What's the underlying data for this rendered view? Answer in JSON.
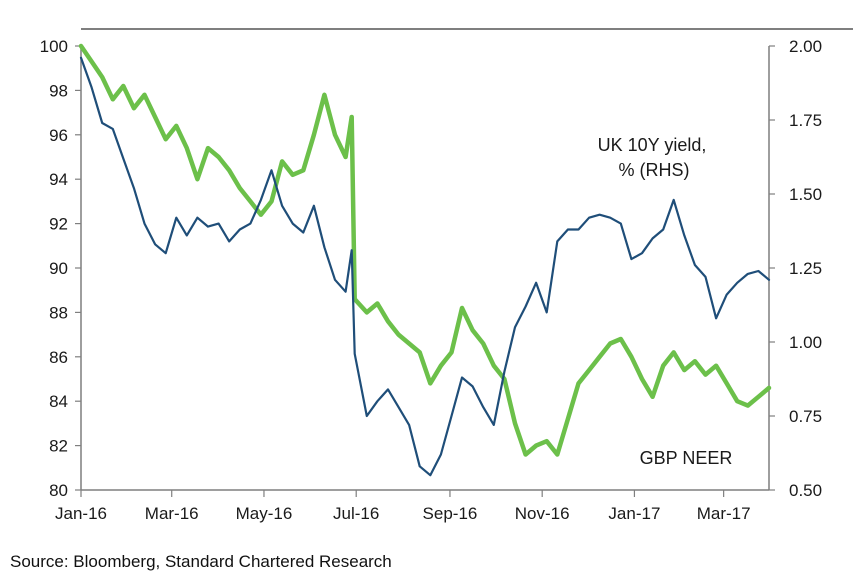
{
  "chart_data": {
    "type": "line",
    "title": "",
    "xlabel": "",
    "ylabel_left": "",
    "ylabel_right": "",
    "x_ticks": [
      "Jan-16",
      "Mar-16",
      "May-16",
      "Jul-16",
      "Sep-16",
      "Nov-16",
      "Jan-17",
      "Mar-17"
    ],
    "x_range": [
      "2016-01-01",
      "2017-03-31"
    ],
    "ylim_left": [
      80,
      100
    ],
    "yticks_left": [
      "80",
      "82",
      "84",
      "86",
      "88",
      "90",
      "92",
      "94",
      "96",
      "98",
      "100"
    ],
    "ylim_right": [
      0.5,
      2.0
    ],
    "yticks_right": [
      "0.50",
      "0.75",
      "1.00",
      "1.25",
      "1.50",
      "1.75",
      "2.00"
    ],
    "grid": false,
    "legend": "none",
    "series": [
      {
        "name": "GBP NEER",
        "axis": "left",
        "color": "#6cc04a",
        "points": [
          [
            "2016-01-01",
            100.0
          ],
          [
            "2016-01-08",
            99.3
          ],
          [
            "2016-01-15",
            98.6
          ],
          [
            "2016-01-22",
            97.6
          ],
          [
            "2016-01-29",
            98.2
          ],
          [
            "2016-02-05",
            97.2
          ],
          [
            "2016-02-12",
            97.8
          ],
          [
            "2016-02-19",
            96.8
          ],
          [
            "2016-02-26",
            95.8
          ],
          [
            "2016-03-04",
            96.4
          ],
          [
            "2016-03-11",
            95.4
          ],
          [
            "2016-03-18",
            94.0
          ],
          [
            "2016-03-25",
            95.4
          ],
          [
            "2016-04-01",
            95.0
          ],
          [
            "2016-04-08",
            94.4
          ],
          [
            "2016-04-15",
            93.6
          ],
          [
            "2016-04-22",
            93.0
          ],
          [
            "2016-04-29",
            92.4
          ],
          [
            "2016-05-06",
            93.0
          ],
          [
            "2016-05-13",
            94.8
          ],
          [
            "2016-05-20",
            94.2
          ],
          [
            "2016-05-27",
            94.4
          ],
          [
            "2016-06-03",
            96.0
          ],
          [
            "2016-06-10",
            97.8
          ],
          [
            "2016-06-17",
            96.0
          ],
          [
            "2016-06-24",
            95.0
          ],
          [
            "2016-06-28",
            96.8
          ],
          [
            "2016-06-30",
            88.6
          ],
          [
            "2016-07-08",
            88.0
          ],
          [
            "2016-07-15",
            88.4
          ],
          [
            "2016-07-22",
            87.6
          ],
          [
            "2016-07-29",
            87.0
          ],
          [
            "2016-08-05",
            86.6
          ],
          [
            "2016-08-12",
            86.2
          ],
          [
            "2016-08-19",
            84.8
          ],
          [
            "2016-08-26",
            85.6
          ],
          [
            "2016-09-02",
            86.2
          ],
          [
            "2016-09-09",
            88.2
          ],
          [
            "2016-09-16",
            87.2
          ],
          [
            "2016-09-23",
            86.6
          ],
          [
            "2016-09-30",
            85.6
          ],
          [
            "2016-10-07",
            85.0
          ],
          [
            "2016-10-14",
            83.0
          ],
          [
            "2016-10-21",
            81.6
          ],
          [
            "2016-10-28",
            82.0
          ],
          [
            "2016-11-04",
            82.2
          ],
          [
            "2016-11-11",
            81.6
          ],
          [
            "2016-11-18",
            83.2
          ],
          [
            "2016-11-25",
            84.8
          ],
          [
            "2016-12-02",
            85.4
          ],
          [
            "2016-12-09",
            86.0
          ],
          [
            "2016-12-16",
            86.6
          ],
          [
            "2016-12-23",
            86.8
          ],
          [
            "2016-12-30",
            86.0
          ],
          [
            "2017-01-06",
            85.0
          ],
          [
            "2017-01-13",
            84.2
          ],
          [
            "2017-01-20",
            85.6
          ],
          [
            "2017-01-27",
            86.2
          ],
          [
            "2017-02-03",
            85.4
          ],
          [
            "2017-02-10",
            85.8
          ],
          [
            "2017-02-17",
            85.2
          ],
          [
            "2017-02-24",
            85.6
          ],
          [
            "2017-03-03",
            84.8
          ],
          [
            "2017-03-10",
            84.0
          ],
          [
            "2017-03-17",
            83.8
          ],
          [
            "2017-03-24",
            84.2
          ],
          [
            "2017-03-31",
            84.6
          ]
        ]
      },
      {
        "name": "UK 10Y yield, % (RHS)",
        "axis": "right",
        "color": "#1f4e79",
        "points": [
          [
            "2016-01-01",
            1.96
          ],
          [
            "2016-01-08",
            1.86
          ],
          [
            "2016-01-15",
            1.74
          ],
          [
            "2016-01-22",
            1.72
          ],
          [
            "2016-01-29",
            1.62
          ],
          [
            "2016-02-05",
            1.52
          ],
          [
            "2016-02-12",
            1.4
          ],
          [
            "2016-02-19",
            1.33
          ],
          [
            "2016-02-26",
            1.3
          ],
          [
            "2016-03-04",
            1.42
          ],
          [
            "2016-03-11",
            1.36
          ],
          [
            "2016-03-18",
            1.42
          ],
          [
            "2016-03-25",
            1.39
          ],
          [
            "2016-04-01",
            1.4
          ],
          [
            "2016-04-08",
            1.34
          ],
          [
            "2016-04-15",
            1.38
          ],
          [
            "2016-04-22",
            1.4
          ],
          [
            "2016-04-29",
            1.48
          ],
          [
            "2016-05-06",
            1.58
          ],
          [
            "2016-05-13",
            1.46
          ],
          [
            "2016-05-20",
            1.4
          ],
          [
            "2016-05-27",
            1.37
          ],
          [
            "2016-06-03",
            1.46
          ],
          [
            "2016-06-10",
            1.32
          ],
          [
            "2016-06-17",
            1.21
          ],
          [
            "2016-06-24",
            1.17
          ],
          [
            "2016-06-28",
            1.31
          ],
          [
            "2016-06-30",
            0.96
          ],
          [
            "2016-07-08",
            0.75
          ],
          [
            "2016-07-15",
            0.8
          ],
          [
            "2016-07-22",
            0.84
          ],
          [
            "2016-07-29",
            0.78
          ],
          [
            "2016-08-05",
            0.72
          ],
          [
            "2016-08-12",
            0.58
          ],
          [
            "2016-08-19",
            0.55
          ],
          [
            "2016-08-26",
            0.62
          ],
          [
            "2016-09-02",
            0.75
          ],
          [
            "2016-09-09",
            0.88
          ],
          [
            "2016-09-16",
            0.85
          ],
          [
            "2016-09-23",
            0.78
          ],
          [
            "2016-09-30",
            0.72
          ],
          [
            "2016-10-07",
            0.9
          ],
          [
            "2016-10-14",
            1.05
          ],
          [
            "2016-10-21",
            1.12
          ],
          [
            "2016-10-28",
            1.2
          ],
          [
            "2016-11-04",
            1.1
          ],
          [
            "2016-11-11",
            1.34
          ],
          [
            "2016-11-18",
            1.38
          ],
          [
            "2016-11-25",
            1.38
          ],
          [
            "2016-12-02",
            1.42
          ],
          [
            "2016-12-09",
            1.43
          ],
          [
            "2016-12-16",
            1.42
          ],
          [
            "2016-12-23",
            1.4
          ],
          [
            "2016-12-30",
            1.28
          ],
          [
            "2017-01-06",
            1.3
          ],
          [
            "2017-01-13",
            1.35
          ],
          [
            "2017-01-20",
            1.38
          ],
          [
            "2017-01-27",
            1.48
          ],
          [
            "2017-02-03",
            1.36
          ],
          [
            "2017-02-10",
            1.26
          ],
          [
            "2017-02-17",
            1.22
          ],
          [
            "2017-02-24",
            1.08
          ],
          [
            "2017-03-03",
            1.16
          ],
          [
            "2017-03-10",
            1.2
          ],
          [
            "2017-03-17",
            1.23
          ],
          [
            "2017-03-24",
            1.24
          ],
          [
            "2017-03-31",
            1.21
          ]
        ]
      }
    ],
    "annotations": {
      "yield_label_line1": "UK 10Y yield,",
      "yield_label_line2": "% (RHS)",
      "neer_label": "GBP NEER"
    }
  },
  "source": "Source: Bloomberg, Standard Chartered Research"
}
